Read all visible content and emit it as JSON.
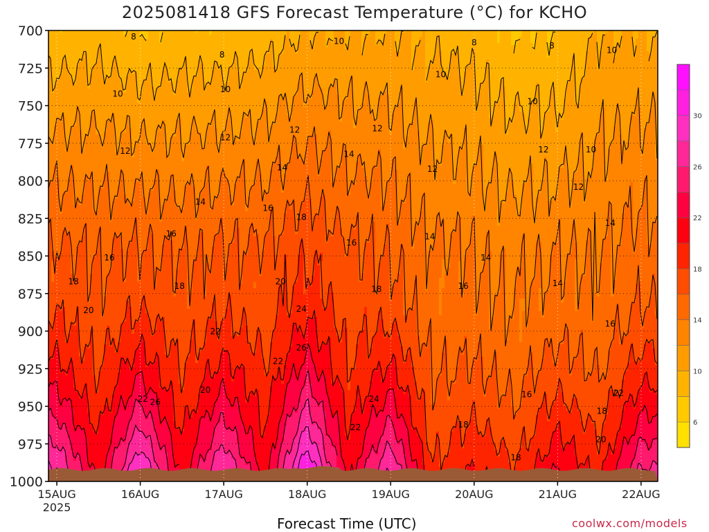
{
  "title": "2025081418 GFS Forecast Temperature (°C) for KCHO",
  "watermark": "coolwx.com/models",
  "chart_data": {
    "type": "heatmap",
    "title": "2025081418 GFS Forecast Temperature (°C) for KCHO",
    "xlabel": "Forecast Time (UTC)",
    "ylabel": "",
    "x_ticks": [
      "15AUG",
      "16AUG",
      "17AUG",
      "18AUG",
      "19AUG",
      "20AUG",
      "21AUG",
      "22AUG"
    ],
    "x_first_tick_year": "2025",
    "y_ticks": [
      700,
      725,
      750,
      775,
      800,
      825,
      850,
      875,
      900,
      925,
      950,
      975,
      1000
    ],
    "y_range": [
      700,
      1000
    ],
    "x_range_days": [
      14.9,
      22.2
    ],
    "y_axis_inverted": true,
    "grid": "dotted",
    "colorbar": {
      "levels": [
        6,
        8,
        10,
        12,
        14,
        16,
        18,
        20,
        22,
        24,
        26,
        28,
        30,
        32
      ],
      "colors": [
        "#ffe000",
        "#ffca00",
        "#ffb300",
        "#ff9c00",
        "#ff8400",
        "#ff6a00",
        "#ff4d00",
        "#ff2400",
        "#ff0010",
        "#ff0040",
        "#ff1a6e",
        "#ff2898",
        "#ff30c0",
        "#ff20e0",
        "#ff10ff"
      ]
    },
    "temperature_profiles": [
      {
        "time": "15AUG 00",
        "t700": 8.5,
        "t850": 16.5,
        "sfc": 28
      },
      {
        "time": "15AUG 12",
        "t700": 9.0,
        "t850": 16.0,
        "sfc": 21
      },
      {
        "time": "16AUG 00",
        "t700": 8.0,
        "t850": 16.5,
        "sfc": 30
      },
      {
        "time": "16AUG 12",
        "t700": 8.5,
        "t850": 16.0,
        "sfc": 21
      },
      {
        "time": "17AUG 00",
        "t700": 8.5,
        "t850": 16.5,
        "sfc": 28
      },
      {
        "time": "17AUG 12",
        "t700": 9.0,
        "t850": 16.5,
        "sfc": 21
      },
      {
        "time": "18AUG 00",
        "t700": 10.0,
        "t850": 18.0,
        "sfc": 32
      },
      {
        "time": "18AUG 12",
        "t700": 10.0,
        "t850": 16.5,
        "sfc": 21
      },
      {
        "time": "19AUG 00",
        "t700": 10.0,
        "t850": 16.0,
        "sfc": 28
      },
      {
        "time": "19AUG 12",
        "t700": 9.5,
        "t850": 14.5,
        "sfc": 18
      },
      {
        "time": "20AUG 00",
        "t700": 9.0,
        "t850": 14.0,
        "sfc": 20
      },
      {
        "time": "20AUG 12",
        "t700": 8.0,
        "t850": 13.5,
        "sfc": 18
      },
      {
        "time": "21AUG 00",
        "t700": 8.0,
        "t850": 14.0,
        "sfc": 22
      },
      {
        "time": "21AUG 12",
        "t700": 10.0,
        "t850": 14.0,
        "sfc": 19
      },
      {
        "time": "22AUG 00",
        "t700": 10.0,
        "t850": 15.0,
        "sfc": 26
      }
    ],
    "contour_labels": [
      {
        "text": "8",
        "day": 15.92,
        "p": 706
      },
      {
        "text": "8",
        "day": 16.98,
        "p": 718
      },
      {
        "text": "8",
        "day": 20.0,
        "p": 710
      },
      {
        "text": "8",
        "day": 20.93,
        "p": 712
      },
      {
        "text": "10",
        "day": 15.73,
        "p": 744
      },
      {
        "text": "10",
        "day": 17.02,
        "p": 741
      },
      {
        "text": "10",
        "day": 18.38,
        "p": 709
      },
      {
        "text": "10",
        "day": 19.6,
        "p": 731
      },
      {
        "text": "10",
        "day": 20.7,
        "p": 749
      },
      {
        "text": "10",
        "day": 21.4,
        "p": 781
      },
      {
        "text": "10",
        "day": 21.65,
        "p": 715
      },
      {
        "text": "12",
        "day": 15.82,
        "p": 782
      },
      {
        "text": "12",
        "day": 17.02,
        "p": 773
      },
      {
        "text": "12",
        "day": 17.85,
        "p": 768
      },
      {
        "text": "12",
        "day": 18.84,
        "p": 767
      },
      {
        "text": "12",
        "day": 19.5,
        "p": 794
      },
      {
        "text": "12",
        "day": 20.83,
        "p": 781
      },
      {
        "text": "12",
        "day": 21.25,
        "p": 806
      },
      {
        "text": "14",
        "day": 17.7,
        "p": 793
      },
      {
        "text": "14",
        "day": 18.5,
        "p": 784
      },
      {
        "text": "14",
        "day": 16.72,
        "p": 816
      },
      {
        "text": "14",
        "day": 19.47,
        "p": 839
      },
      {
        "text": "14",
        "day": 20.14,
        "p": 853
      },
      {
        "text": "14",
        "day": 21.0,
        "p": 870
      },
      {
        "text": "14",
        "day": 21.63,
        "p": 830
      },
      {
        "text": "16",
        "day": 15.63,
        "p": 853
      },
      {
        "text": "16",
        "day": 16.37,
        "p": 837
      },
      {
        "text": "16",
        "day": 17.53,
        "p": 820
      },
      {
        "text": "16",
        "day": 18.53,
        "p": 843
      },
      {
        "text": "16",
        "day": 19.87,
        "p": 872
      },
      {
        "text": "16",
        "day": 20.63,
        "p": 944
      },
      {
        "text": "16",
        "day": 21.63,
        "p": 897
      },
      {
        "text": "18",
        "day": 15.2,
        "p": 869
      },
      {
        "text": "18",
        "day": 16.47,
        "p": 872
      },
      {
        "text": "18",
        "day": 17.93,
        "p": 826
      },
      {
        "text": "18",
        "day": 18.83,
        "p": 874
      },
      {
        "text": "18",
        "day": 19.87,
        "p": 964
      },
      {
        "text": "18",
        "day": 20.5,
        "p": 986
      },
      {
        "text": "18",
        "day": 21.53,
        "p": 955
      },
      {
        "text": "20",
        "day": 15.38,
        "p": 888
      },
      {
        "text": "20",
        "day": 17.68,
        "p": 869
      },
      {
        "text": "20",
        "day": 16.78,
        "p": 941
      },
      {
        "text": "20",
        "day": 21.52,
        "p": 974
      },
      {
        "text": "22",
        "day": 16.03,
        "p": 947
      },
      {
        "text": "22",
        "day": 16.9,
        "p": 902
      },
      {
        "text": "22",
        "day": 17.65,
        "p": 922
      },
      {
        "text": "22",
        "day": 18.58,
        "p": 966
      },
      {
        "text": "22",
        "day": 21.73,
        "p": 943
      },
      {
        "text": "24",
        "day": 17.93,
        "p": 887
      },
      {
        "text": "24",
        "day": 18.8,
        "p": 947
      },
      {
        "text": "26",
        "day": 16.18,
        "p": 949
      },
      {
        "text": "26",
        "day": 17.93,
        "p": 913
      }
    ]
  }
}
